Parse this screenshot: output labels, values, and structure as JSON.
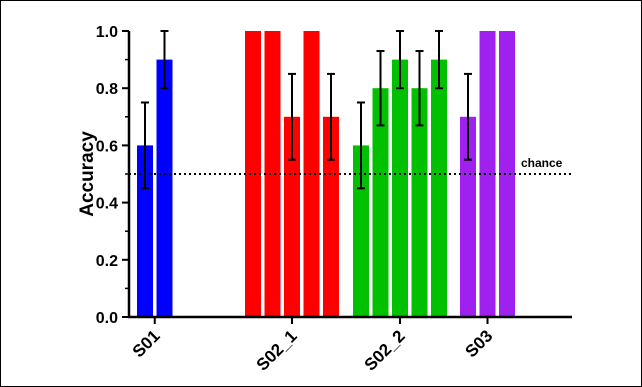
{
  "chart_data": {
    "type": "bar",
    "title": "",
    "xlabel": "",
    "ylabel": "Accuracy",
    "ylim": [
      0,
      1.0
    ],
    "yticks": [
      "0.0",
      "0.2",
      "0.4",
      "0.6",
      "0.8",
      "1.0"
    ],
    "grid": false,
    "legend": "none",
    "reference_line": {
      "value": 0.5,
      "label": "chance",
      "style": "dotted"
    },
    "groups": [
      {
        "label": "S01",
        "color": "#0000ff",
        "bars": [
          {
            "value": 0.6,
            "error": 0.15
          },
          {
            "value": 0.9,
            "error": 0.1
          }
        ]
      },
      {
        "label": "S02_1",
        "color": "#ff0000",
        "bars": [
          {
            "value": 1.0,
            "error": 0
          },
          {
            "value": 1.0,
            "error": 0
          },
          {
            "value": 0.7,
            "error": 0.15
          },
          {
            "value": 1.0,
            "error": 0
          },
          {
            "value": 0.7,
            "error": 0.15
          }
        ]
      },
      {
        "label": "S02_2",
        "color": "#00c000",
        "bars": [
          {
            "value": 0.6,
            "error": 0.15
          },
          {
            "value": 0.8,
            "error": 0.13
          },
          {
            "value": 0.9,
            "error": 0.1
          },
          {
            "value": 0.8,
            "error": 0.13
          },
          {
            "value": 0.9,
            "error": 0.1
          }
        ]
      },
      {
        "label": "S03",
        "color": "#a020f0",
        "bars": [
          {
            "value": 0.7,
            "error": 0.15
          },
          {
            "value": 1.0,
            "error": 0
          },
          {
            "value": 1.0,
            "error": 0
          }
        ]
      }
    ]
  }
}
